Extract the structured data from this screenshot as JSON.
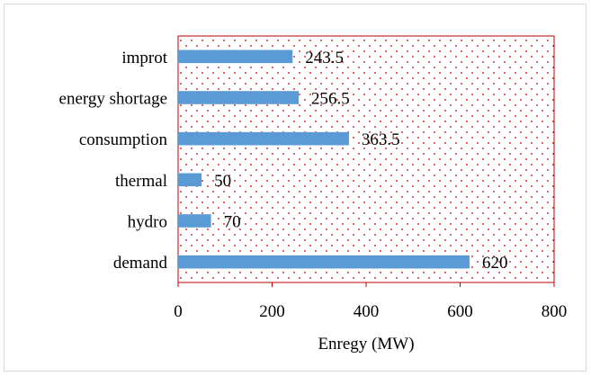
{
  "chart_data": {
    "type": "bar",
    "orientation": "horizontal",
    "categories": [
      "improt",
      "energy shortage",
      "consumption",
      "thermal",
      "hydro",
      "demand"
    ],
    "values": [
      243.5,
      256.5,
      363.5,
      50,
      70,
      620
    ],
    "data_labels": [
      "243.5",
      "256.5",
      "363.5",
      "50",
      "70",
      "620"
    ],
    "title": "",
    "xlabel": "Enregy (MW)",
    "ylabel": "",
    "xlim": [
      0,
      800
    ],
    "x_ticks": [
      0,
      200,
      400,
      600,
      800
    ],
    "x_tick_labels": [
      "0",
      "200",
      "400",
      "600",
      "800"
    ],
    "grid": false,
    "legend": "none",
    "colors": {
      "bar": "#5b9bd5",
      "plot_border": "#c00000",
      "plot_pattern": "#c00000",
      "axis": "#000000"
    }
  }
}
